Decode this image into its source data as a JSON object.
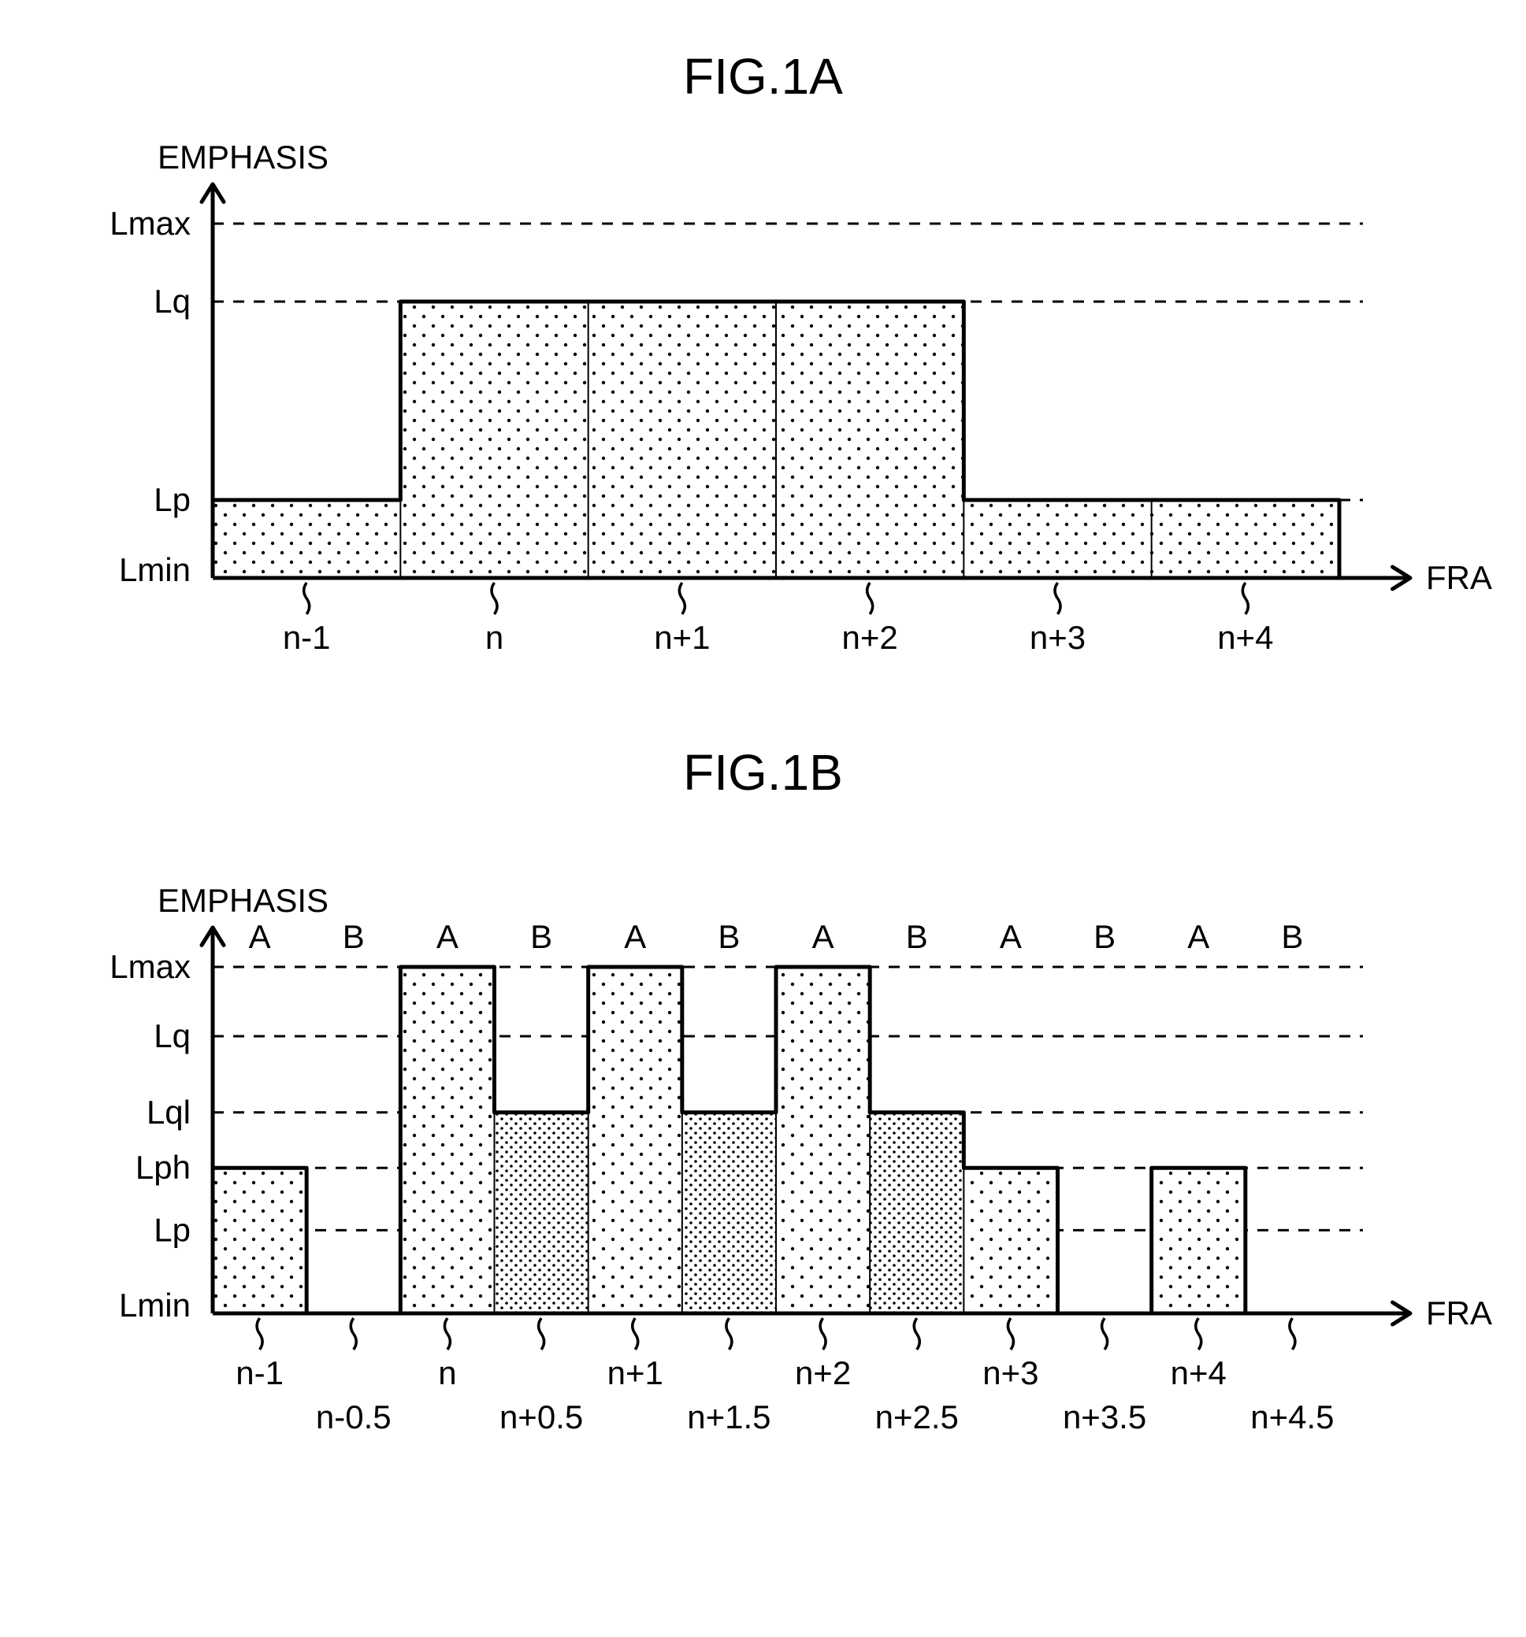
{
  "figA": {
    "title": "FIG.1A",
    "ylabel": "EMPHASIS",
    "xlabel": "FRAME",
    "yLevels": [
      {
        "key": "Lmax",
        "label": "Lmax",
        "val": 100
      },
      {
        "key": "Lq",
        "label": "Lq",
        "val": 78
      },
      {
        "key": "Lp",
        "label": "Lp",
        "val": 22
      },
      {
        "key": "Lmin",
        "label": "Lmin",
        "val": 0
      }
    ],
    "xTicks": [
      {
        "x": 0,
        "bottom": "n-1"
      },
      {
        "x": 1,
        "bottom": "n"
      },
      {
        "x": 2,
        "bottom": "n+1"
      },
      {
        "x": 3,
        "bottom": "n+2"
      },
      {
        "x": 4,
        "bottom": "n+3"
      },
      {
        "x": 5,
        "bottom": "n+4"
      }
    ],
    "bars": [
      {
        "x": 0,
        "w": 1,
        "h": 22,
        "fill": "sparse"
      },
      {
        "x": 1,
        "w": 1,
        "h": 78,
        "fill": "sparse"
      },
      {
        "x": 2,
        "w": 1,
        "h": 78,
        "fill": "sparse"
      },
      {
        "x": 3,
        "w": 1,
        "h": 78,
        "fill": "sparse"
      },
      {
        "x": 4,
        "w": 1,
        "h": 22,
        "fill": "sparse"
      },
      {
        "x": 5,
        "w": 1,
        "h": 22,
        "fill": "sparse"
      }
    ],
    "xExtent": 6,
    "chart": {
      "outerW": 1857,
      "outerH": 780,
      "plotLeft": 230,
      "plotRight": 1660,
      "plotTop": 140,
      "plotBottom": 590,
      "bgColor": "#ffffff",
      "axisColor": "#000000",
      "axisWidth": 5,
      "barStroke": "#000000",
      "barStrokeWidth": 5,
      "gridDash": "14 12",
      "gridColor": "#000000",
      "gridWidth": 3,
      "labelFontSize": 42,
      "titleFontSize": 64,
      "tickWiggle": true
    }
  },
  "figB": {
    "title": "FIG.1B",
    "ylabel": "EMPHASIS",
    "xlabel": "FRAME",
    "yLevels": [
      {
        "key": "Lmax",
        "label": "Lmax",
        "val": 100
      },
      {
        "key": "Lq",
        "label": "Lq",
        "val": 80
      },
      {
        "key": "Lql",
        "label": "Lql",
        "val": 58
      },
      {
        "key": "Lph",
        "label": "Lph",
        "val": 42
      },
      {
        "key": "Lp",
        "label": "Lp",
        "val": 24
      },
      {
        "key": "Lmin",
        "label": "Lmin",
        "val": 0
      }
    ],
    "topLabels": [
      "A",
      "B",
      "A",
      "B",
      "A",
      "B",
      "A",
      "B",
      "A",
      "B",
      "A",
      "B"
    ],
    "xTicks": [
      {
        "x": 0,
        "bottom": "n-1",
        "row": 0
      },
      {
        "x": 1,
        "bottom": "n-0.5",
        "row": 1
      },
      {
        "x": 2,
        "bottom": "n",
        "row": 0
      },
      {
        "x": 3,
        "bottom": "n+0.5",
        "row": 1
      },
      {
        "x": 4,
        "bottom": "n+1",
        "row": 0
      },
      {
        "x": 5,
        "bottom": "n+1.5",
        "row": 1
      },
      {
        "x": 6,
        "bottom": "n+2",
        "row": 0
      },
      {
        "x": 7,
        "bottom": "n+2.5",
        "row": 1
      },
      {
        "x": 8,
        "bottom": "n+3",
        "row": 0
      },
      {
        "x": 9,
        "bottom": "n+3.5",
        "row": 1
      },
      {
        "x": 10,
        "bottom": "n+4",
        "row": 0
      },
      {
        "x": 11,
        "bottom": "n+4.5",
        "row": 1
      }
    ],
    "bars": [
      {
        "x": 0,
        "w": 1,
        "h": 42,
        "fill": "sparse"
      },
      {
        "x": 1,
        "w": 1,
        "h": 0,
        "fill": "none"
      },
      {
        "x": 2,
        "w": 1,
        "h": 100,
        "fill": "sparse"
      },
      {
        "x": 3,
        "w": 1,
        "h": 58,
        "fill": "dense"
      },
      {
        "x": 4,
        "w": 1,
        "h": 100,
        "fill": "sparse"
      },
      {
        "x": 5,
        "w": 1,
        "h": 58,
        "fill": "dense"
      },
      {
        "x": 6,
        "w": 1,
        "h": 100,
        "fill": "sparse"
      },
      {
        "x": 7,
        "w": 1,
        "h": 58,
        "fill": "dense"
      },
      {
        "x": 8,
        "w": 1,
        "h": 42,
        "fill": "sparse"
      },
      {
        "x": 9,
        "w": 1,
        "h": 0,
        "fill": "none"
      },
      {
        "x": 10,
        "w": 1,
        "h": 42,
        "fill": "sparse"
      },
      {
        "x": 11,
        "w": 1,
        "h": 0,
        "fill": "none"
      }
    ],
    "xExtent": 12,
    "chart": {
      "outerW": 1857,
      "outerH": 900,
      "plotLeft": 230,
      "plotRight": 1660,
      "plotTop": 200,
      "plotBottom": 640,
      "bgColor": "#ffffff",
      "axisColor": "#000000",
      "axisWidth": 5,
      "barStroke": "#000000",
      "barStrokeWidth": 5,
      "gridDash": "14 12",
      "gridColor": "#000000",
      "gridWidth": 3,
      "labelFontSize": 42,
      "titleFontSize": 64,
      "tickWiggle": true
    }
  }
}
